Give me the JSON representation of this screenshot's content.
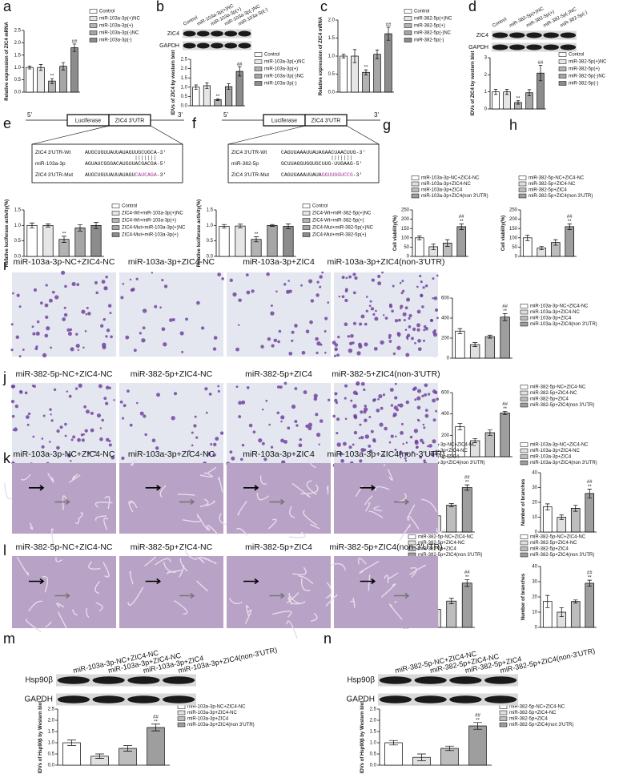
{
  "panel_labels": [
    "a",
    "b",
    "c",
    "d",
    "e",
    "f",
    "g",
    "h",
    "i",
    "j",
    "k",
    "l",
    "m",
    "n"
  ],
  "chart_data": [
    {
      "type": "bar",
      "ylabel": "Relative expression of ZIC4 mRNA",
      "categories": [
        "Control",
        "miR-103a-3p(+)NC",
        "miR-103a-3p(+)",
        "miR-103a-3p(-)NC",
        "miR-103a-3p(-)"
      ],
      "colors": [
        "#ffffff",
        "#e6e6e6",
        "#b3b3b3",
        "#a6a6a6",
        "#8c8c8c"
      ],
      "values": [
        1.0,
        1.0,
        0.45,
        1.05,
        1.8
      ],
      "errors": [
        0.06,
        0.12,
        0.1,
        0.15,
        0.15
      ],
      "stars": [
        null,
        null,
        "**",
        null,
        null
      ],
      "hashes": [
        null,
        null,
        null,
        null,
        "##"
      ],
      "ylim": [
        0,
        2.5
      ],
      "yticks": [
        {
          "value": 0,
          "label": "0.0"
        },
        0.5,
        {
          "value": 1,
          "label": "1.0"
        },
        1.5,
        {
          "value": 2,
          "label": "2.0"
        },
        2.5
      ]
    },
    {
      "type": "bar",
      "ylabel": "IDVs of ZIC4 by western blot",
      "categories": [
        "Control",
        "miR-103a-3p(+)NC",
        "miR-103a-3p(+)",
        "miR-103a-3p(-)NC",
        "miR-103a-3p(-)"
      ],
      "colors": [
        "#ffffff",
        "#e6e6e6",
        "#b3b3b3",
        "#a6a6a6",
        "#8c8c8c"
      ],
      "values": [
        1.0,
        1.08,
        0.33,
        1.03,
        1.85
      ],
      "errors": [
        0.12,
        0.15,
        0.05,
        0.15,
        0.25
      ],
      "stars": [
        null,
        null,
        "**",
        null,
        null
      ],
      "hashes": [
        null,
        null,
        null,
        null,
        "##"
      ],
      "ylim": [
        0,
        2.5
      ],
      "yticks": [
        {
          "value": 0,
          "label": "0.0"
        },
        0.5,
        {
          "value": 1,
          "label": "1.0"
        },
        1.5,
        {
          "value": 2,
          "label": "2.0"
        },
        2.5
      ]
    },
    {
      "type": "bar",
      "ylabel": "Relative expression of ZIC4 mRNA",
      "categories": [
        "Control",
        "miR-382-5p(+)NC",
        "miR-382-5p(+)",
        "miR-382-5p(-)NC",
        "miR-382-5p(-)"
      ],
      "colors": [
        "#ffffff",
        "#e6e6e6",
        "#b3b3b3",
        "#a6a6a6",
        "#8c8c8c"
      ],
      "values": [
        1.0,
        1.0,
        0.55,
        1.05,
        1.62
      ],
      "errors": [
        0.05,
        0.18,
        0.07,
        0.12,
        0.18
      ],
      "stars": [
        null,
        null,
        "**",
        null,
        null
      ],
      "hashes": [
        null,
        null,
        null,
        null,
        "##"
      ],
      "ylim": [
        0,
        2
      ],
      "yticks": [
        {
          "value": 0,
          "label": "0.0"
        },
        0.5,
        {
          "value": 1,
          "label": "1.0"
        },
        1.5,
        {
          "value": 2,
          "label": "2.0"
        }
      ]
    },
    {
      "type": "bar",
      "ylabel": "IDVs of ZIC4 by western blot",
      "categories": [
        "Control",
        "miR-382-5p(+)NC",
        "miR-382-5p(+)",
        "miR-382-5p(-)NC",
        "miR-382-5p(-)"
      ],
      "colors": [
        "#ffffff",
        "#e6e6e6",
        "#b3b3b3",
        "#a6a6a6",
        "#8c8c8c"
      ],
      "values": [
        1.0,
        1.0,
        0.38,
        0.95,
        2.1
      ],
      "errors": [
        0.15,
        0.15,
        0.1,
        0.18,
        0.45
      ],
      "stars": [
        null,
        null,
        "**",
        null,
        null
      ],
      "hashes": [
        null,
        null,
        null,
        null,
        "##"
      ],
      "ylim": [
        0,
        3
      ],
      "yticks": [
        0,
        1,
        2,
        3
      ]
    },
    {
      "type": "bar",
      "ylabel": "Relative luciferase activity(%)",
      "categories": [
        "Control",
        "ZIC4-Wt+miR-103a-3p(+)NC",
        "ZIC4-Wt+miR-103a-3p(+)",
        "ZIC4-Mut+miR-103a-3p(+)NC",
        "ZIC4-Mut+miR-103a-3p(+)"
      ],
      "colors": [
        "#ffffff",
        "#e6e6e6",
        "#b3b3b3",
        "#a6a6a6",
        "#8c8c8c"
      ],
      "values": [
        1.0,
        1.0,
        0.55,
        0.92,
        1.0
      ],
      "errors": [
        0.08,
        0.05,
        0.1,
        0.1,
        0.1
      ],
      "stars": [
        null,
        null,
        "**",
        null,
        null
      ],
      "hashes": [
        null,
        null,
        null,
        null,
        null
      ],
      "ylim": [
        0,
        1.5
      ],
      "yticks": [
        {
          "value": 0,
          "label": "0.0"
        },
        0.5,
        {
          "value": 1,
          "label": "1.0"
        },
        1.5
      ]
    },
    {
      "type": "bar",
      "ylabel": "Relative luciferase activity(%)",
      "categories": [
        "Control",
        "ZIC4-Wt+miR-382-5p(+)NC",
        "ZIC4-Wt+miR-382-5p(+)",
        "ZIC4-Mut+miR-382-5p(+)NC",
        "ZIC4-Mut+miR-382-5p(+)"
      ],
      "colors": [
        "#ffffff",
        "#e6e6e6",
        "#b3b3b3",
        "#a6a6a6",
        "#8c8c8c"
      ],
      "values": [
        0.97,
        0.98,
        0.55,
        1.0,
        0.97
      ],
      "errors": [
        0.06,
        0.06,
        0.08,
        0.03,
        0.08
      ],
      "stars": [
        null,
        null,
        "**",
        null,
        null
      ],
      "hashes": [
        null,
        null,
        null,
        null,
        null
      ],
      "ylim": [
        0,
        1.5
      ],
      "yticks": [
        {
          "value": 0,
          "label": "0.0"
        },
        0.5,
        {
          "value": 1,
          "label": "1.0"
        },
        1.5
      ]
    },
    {
      "type": "bar",
      "ylabel": "Cell viability(%)",
      "categories": [
        "miR-103a-3p-NC+ZIC4-NC",
        "miR-103a-3p+ZIC4-NC",
        "miR-103a-3p+ZIC4",
        "miR-103a-3p+ZIC4(non 3'UTR)"
      ],
      "colors": [
        "#ffffff",
        "#e0e0e0",
        "#bdbdbd",
        "#9e9e9e"
      ],
      "values": [
        100,
        52,
        72,
        160
      ],
      "errors": [
        10,
        15,
        18,
        15
      ],
      "stars": [
        null,
        null,
        null,
        "**"
      ],
      "hashes": [
        null,
        null,
        null,
        "##"
      ],
      "ylim": [
        0,
        250
      ],
      "yticks": [
        0,
        50,
        100,
        150,
        200,
        250
      ]
    },
    {
      "type": "bar",
      "ylabel": "Cell viability(%)",
      "categories": [
        "miR-382-5p-NC+ZIC4-NC",
        "miR-382-5p+ZIC4-NC",
        "miR-382-5p+ZIC4",
        "miR-382-5p+ZIC4(non 3'UTR)"
      ],
      "colors": [
        "#ffffff",
        "#e0e0e0",
        "#bdbdbd",
        "#9e9e9e"
      ],
      "values": [
        100,
        45,
        75,
        160
      ],
      "errors": [
        15,
        8,
        15,
        15
      ],
      "stars": [
        null,
        null,
        null,
        "**"
      ],
      "hashes": [
        null,
        null,
        null,
        "##"
      ],
      "ylim": [
        0,
        250
      ],
      "yticks": [
        0,
        50,
        100,
        150,
        200,
        250
      ]
    },
    {
      "type": "bar",
      "ylabel": "Number of migrated cells",
      "categories": [
        "miR-103a-3p-NC+ZIC4-NC",
        "miR-103a-3p+ZIC4-NC",
        "miR-103a-3p+ZIC4",
        "miR-103a-3p+ZIC4(non 3'UTR)"
      ],
      "colors": [
        "#ffffff",
        "#e0e0e0",
        "#bdbdbd",
        "#9e9e9e"
      ],
      "values": [
        270,
        135,
        215,
        410
      ],
      "errors": [
        25,
        20,
        15,
        35
      ],
      "stars": [
        null,
        null,
        null,
        "**"
      ],
      "hashes": [
        null,
        null,
        null,
        "##"
      ],
      "ylim": [
        0,
        600
      ],
      "yticks": [
        0,
        200,
        400,
        600
      ]
    },
    {
      "type": "bar",
      "ylabel": "Number of migrated cells",
      "categories": [
        "miR-382-5p-NC+ZIC4-NC",
        "miR-382-5p+ZIC4-NC",
        "miR-382-5p+ZIC4",
        "miR-382-5p+ZIC4(non 3'UTR)"
      ],
      "colors": [
        "#ffffff",
        "#e0e0e0",
        "#bdbdbd",
        "#9e9e9e"
      ],
      "values": [
        280,
        150,
        225,
        410
      ],
      "errors": [
        30,
        20,
        25,
        15
      ],
      "stars": [
        null,
        null,
        null,
        "**"
      ],
      "hashes": [
        null,
        null,
        null,
        "##"
      ],
      "ylim": [
        0,
        600
      ],
      "yticks": [
        0,
        200,
        400,
        600
      ]
    },
    {
      "type": "bar",
      "ylabel": "Tubule length",
      "categories": [
        "miR-103a-3p-NC+ZIC4-NC",
        "miR-103a-3p+ZIC4-NC",
        "miR-103a-3p+ZIC4",
        "miR-103a-3p+ZIC4(non 3'UTR)"
      ],
      "colors": [
        "#ffffff",
        "#e0e0e0",
        "#bdbdbd",
        "#9e9e9e"
      ],
      "values": [
        1.25,
        0.6,
        1.0,
        1.65
      ],
      "errors": [
        0.15,
        0.1,
        0.06,
        0.1
      ],
      "stars": [
        null,
        null,
        null,
        "**"
      ],
      "hashes": [
        null,
        null,
        null,
        "##"
      ],
      "ylim": [
        0,
        2.2
      ],
      "yticks": [
        {
          "value": 0,
          "label": "0.0"
        },
        0.5,
        {
          "value": 1,
          "label": "1.0"
        },
        1.5,
        {
          "value": 2,
          "label": "2.0"
        }
      ]
    },
    {
      "type": "bar",
      "ylabel": "Number of branches",
      "categories": [
        "miR-103a-3p-NC+ZIC4-NC",
        "miR-103a-3p+ZIC4-NC",
        "miR-103a-3p+ZIC4",
        "miR-103a-3p+ZIC4(non 3'UTR)"
      ],
      "colors": [
        "#ffffff",
        "#e0e0e0",
        "#bdbdbd",
        "#9e9e9e"
      ],
      "values": [
        17,
        10,
        16,
        26
      ],
      "errors": [
        2,
        1.5,
        2,
        3
      ],
      "stars": [
        null,
        null,
        null,
        "**"
      ],
      "hashes": [
        null,
        null,
        null,
        "##"
      ],
      "ylim": [
        0,
        40
      ],
      "yticks": [
        0,
        10,
        20,
        30,
        40
      ]
    },
    {
      "type": "bar",
      "ylabel": "Tubule length",
      "categories": [
        "miR-382-5p-NC+ZIC4-NC",
        "miR-382-5p+ZIC4-NC",
        "miR-382-5p+ZIC4",
        "miR-382-5p+ZIC4(non 3'UTR)"
      ],
      "colors": [
        "#ffffff",
        "#e0e0e0",
        "#bdbdbd",
        "#9e9e9e"
      ],
      "values": [
        1.25,
        0.65,
        0.95,
        1.6
      ],
      "errors": [
        0.06,
        0.1,
        0.1,
        0.12
      ],
      "stars": [
        null,
        null,
        null,
        "**"
      ],
      "hashes": [
        null,
        null,
        null,
        "##"
      ],
      "ylim": [
        0,
        2.2
      ],
      "yticks": [
        {
          "value": 0,
          "label": "0.0"
        },
        0.5,
        {
          "value": 1,
          "label": "1.0"
        },
        1.5,
        {
          "value": 2,
          "label": "2.0"
        }
      ]
    },
    {
      "type": "bar",
      "ylabel": "Number of branches",
      "categories": [
        "miR-382-5p-NC+ZIC4-NC",
        "miR-382-5p+ZIC4-NC",
        "miR-382-5p+ZIC4",
        "miR-382-5p+ZIC4(non 3'UTR)"
      ],
      "colors": [
        "#ffffff",
        "#e0e0e0",
        "#bdbdbd",
        "#9e9e9e"
      ],
      "values": [
        17,
        10,
        17,
        29
      ],
      "errors": [
        4,
        3,
        1,
        2
      ],
      "stars": [
        null,
        null,
        null,
        "**"
      ],
      "hashes": [
        null,
        null,
        null,
        "##"
      ],
      "ylim": [
        0,
        40
      ],
      "yticks": [
        0,
        10,
        20,
        30,
        40
      ]
    },
    {
      "type": "bar",
      "ylabel": "IDVs of Hsp90β by Western blot",
      "categories": [
        "miR-103a-3p-NC+ZIC4-NC",
        "miR-103a-3p+ZIC4-NC",
        "miR-103a-3p+ZIC4",
        "miR-103a-3p+ZIC4(non 3'UTR)"
      ],
      "colors": [
        "#ffffff",
        "#e0e0e0",
        "#bdbdbd",
        "#9e9e9e"
      ],
      "values": [
        1.0,
        0.4,
        0.75,
        1.68
      ],
      "errors": [
        0.12,
        0.1,
        0.12,
        0.15
      ],
      "stars": [
        null,
        null,
        null,
        "**"
      ],
      "hashes": [
        null,
        null,
        null,
        "##"
      ],
      "ylim": [
        0,
        2.5
      ],
      "yticks": [
        {
          "value": 0,
          "label": "0.0"
        },
        0.5,
        {
          "value": 1,
          "label": "1.0"
        },
        1.5,
        {
          "value": 2,
          "label": "2.0"
        },
        2.5
      ]
    },
    {
      "type": "bar",
      "ylabel": "IDVs of Hsp90β by Western blot",
      "categories": [
        "miR-382-5p-NC+ZIC4-NC",
        "miR-382-5p+ZIC4-NC",
        "miR-382-5p+ZIC4",
        "miR-382-5p+ZIC4(non 3'UTR)"
      ],
      "colors": [
        "#ffffff",
        "#e0e0e0",
        "#bdbdbd",
        "#9e9e9e"
      ],
      "values": [
        1.0,
        0.35,
        0.75,
        1.75
      ],
      "errors": [
        0.1,
        0.15,
        0.1,
        0.15
      ],
      "stars": [
        null,
        null,
        null,
        "**"
      ],
      "hashes": [
        null,
        null,
        null,
        "##"
      ],
      "ylim": [
        0,
        2.5
      ],
      "yticks": [
        {
          "value": 0,
          "label": "0.0"
        },
        0.5,
        {
          "value": 1,
          "label": "1.0"
        },
        1.5,
        {
          "value": 2,
          "label": "2.0"
        },
        2.5
      ]
    }
  ],
  "blots": [
    {
      "lanes": [
        "Control",
        "miR-103a-3p(+)NC",
        "miR-103a-3p(+)",
        "miR-103a-3p(-)NC",
        "miR-103a-3p(-)"
      ],
      "rows": [
        "ZIC4",
        "GAPDH"
      ]
    },
    {
      "lanes": [
        "Control",
        "miR-382-5p(+)NC",
        "miR-382-5p(+)",
        "miR-382-5p(-)NC",
        "miR-382-5p(-)"
      ],
      "rows": [
        "ZIC4",
        "GAPDH"
      ]
    },
    {
      "lanes": [
        "miR-103a-3p-NC+ZIC4-NC",
        "miR-103a-3p+ZIC4-NC",
        "miR-103a-3p+ZIC4",
        "miR-103a-3p+ZIC4(non-3'UTR)"
      ],
      "rows": [
        "Hsp90β",
        "GAPDH"
      ]
    },
    {
      "lanes": [
        "miR-382-5p-NC+ZIC4-NC",
        "miR-382-5p+ZIC4-NC",
        "miR-382-5p+ZIC4",
        "miR-382-5p+ZIC4(non-3'UTR)"
      ],
      "rows": [
        "Hsp90β",
        "GAPDH"
      ]
    }
  ],
  "reporters": [
    {
      "five": "5'",
      "luc": "Luciferase",
      "utr": "ZIC4 3'UTR",
      "three": "3'",
      "rows": [
        {
          "name": "ZIC4 3'UTR-Wt",
          "seq": [
            {
              "text": "AUGCUGUUAUUAUAGUUGCUGCA-3'"
            }
          ]
        },
        {
          "name": "miR-103a-3p",
          "seq": [
            {
              "text": "AGUAUCGGGACAUGUUACGACGA-5'"
            }
          ]
        },
        {
          "name": "ZIC4 3'UTR-Mut",
          "seq": [
            {
              "text": "AUGCUGUUAUUAUAGU"
            },
            {
              "text": "CAUCAGA",
              "color": "#a0309a"
            },
            {
              "text": "-3'"
            }
          ]
        }
      ]
    },
    {
      "five": "5'",
      "luc": "Luciferase",
      "utr": "ZIC4 3'UTR",
      "three": "3'",
      "rows": [
        {
          "name": "ZIC4 3'UTR-Wt",
          "seq": [
            {
              "text": "CAGUUAAAUUAUAGAACUAACUUG-3'"
            }
          ]
        },
        {
          "name": "miR-382-5p",
          "seq": [
            {
              "text": "GCUUAGGUGGUGCUUG-UUGAAG-5'"
            }
          ]
        },
        {
          "name": "ZIC4 3'UTR-Mut",
          "seq": [
            {
              "text": "CAGUUAAAUUAUA"
            },
            {
              "text": "GGUUGGUCCG",
              "color": "#a0309a"
            },
            {
              "text": "-3'"
            }
          ]
        }
      ]
    }
  ],
  "micrographs": [
    {
      "captions": [
        "miR-103a-3p-NC+ZIC4-NC",
        "miR-103a-3p+ZIC4-NC",
        "miR-103a-3p+ZIC4",
        "miR-103a-3p+ZIC4(non-3'UTR)"
      ]
    },
    {
      "captions": [
        "miR-382-5p-NC+ZIC4-NC",
        "miR-382-5p+ZIC4-NC",
        "miR-382-5p+ZIC4",
        "miR-382-5+ZIC4(non-3'UTR)"
      ]
    },
    {
      "captions": [
        "miR-103a-3p-NC+ZIC4-NC",
        "miR-103a-3p+ZIC4-NC",
        "miR-103a-3p+ZIC4",
        "miR-103a-3p+ZIC4(non-3'UTR)"
      ]
    },
    {
      "captions": [
        "miR-382-5p-NC+ZIC4-NC",
        "miR-382-5p+ZIC4-NC",
        "miR-382-5p+ZIC4",
        "miR-382-5p+ZIC4(non-3'UTR)"
      ]
    }
  ]
}
